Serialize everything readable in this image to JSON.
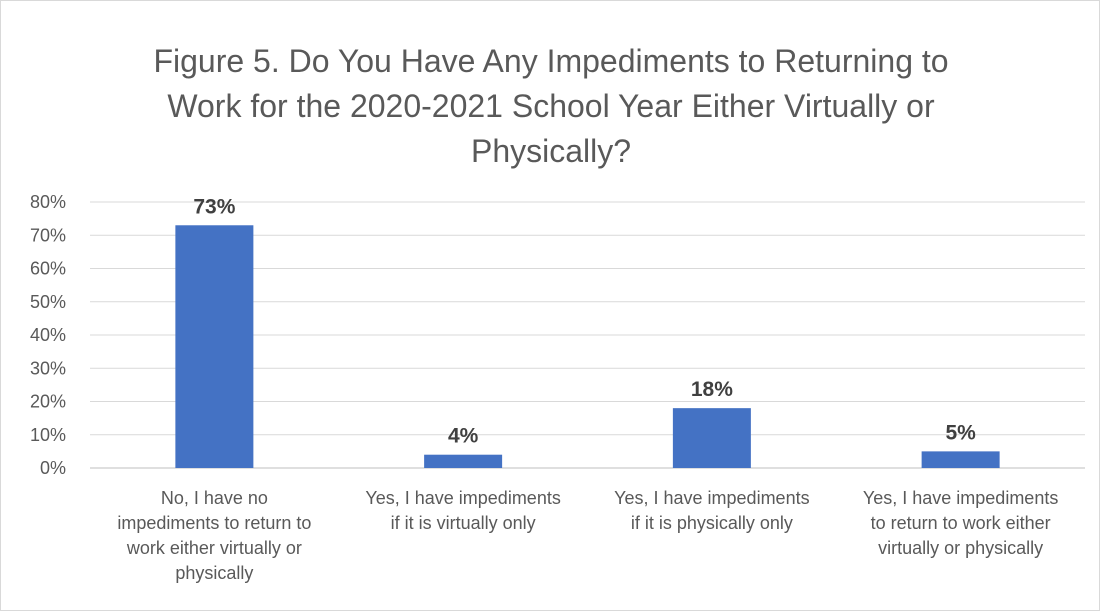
{
  "chart_data": {
    "type": "bar",
    "title": "Figure 5. Do You Have Any Impediments to Returning to Work for the 2020-2021 School Year Either Virtually or Physically?",
    "title_lines": [
      "Figure 5. Do You Have Any Impediments to Returning to",
      "Work for the 2020-2021 School Year Either Virtually or",
      "Physically?"
    ],
    "categories": [
      "No, I have no impediments to return to work either virtually or physically",
      "Yes, I have impediments if it is virtually only",
      "Yes, I have impediments if it is physically only",
      "Yes, I have impediments to return to work either virtually or physically"
    ],
    "category_lines": [
      [
        "No, I have no",
        "impediments to return to",
        "work either virtually or",
        "physically"
      ],
      [
        "Yes, I have impediments",
        "if it is virtually only"
      ],
      [
        "Yes, I have impediments",
        "if it is physically only"
      ],
      [
        "Yes, I have impediments",
        "to return to work either",
        "virtually or physically"
      ]
    ],
    "values": [
      73,
      4,
      18,
      5
    ],
    "data_labels": [
      "73%",
      "4%",
      "18%",
      "5%"
    ],
    "ylim": [
      0,
      80
    ],
    "yticks": [
      0,
      10,
      20,
      30,
      40,
      50,
      60,
      70,
      80
    ],
    "ytick_labels": [
      "0%",
      "10%",
      "20%",
      "30%",
      "40%",
      "50%",
      "60%",
      "70%",
      "80%"
    ],
    "xlabel": "",
    "ylabel": "",
    "grid": true,
    "legend": "none",
    "bar_color": "#4472c4"
  }
}
